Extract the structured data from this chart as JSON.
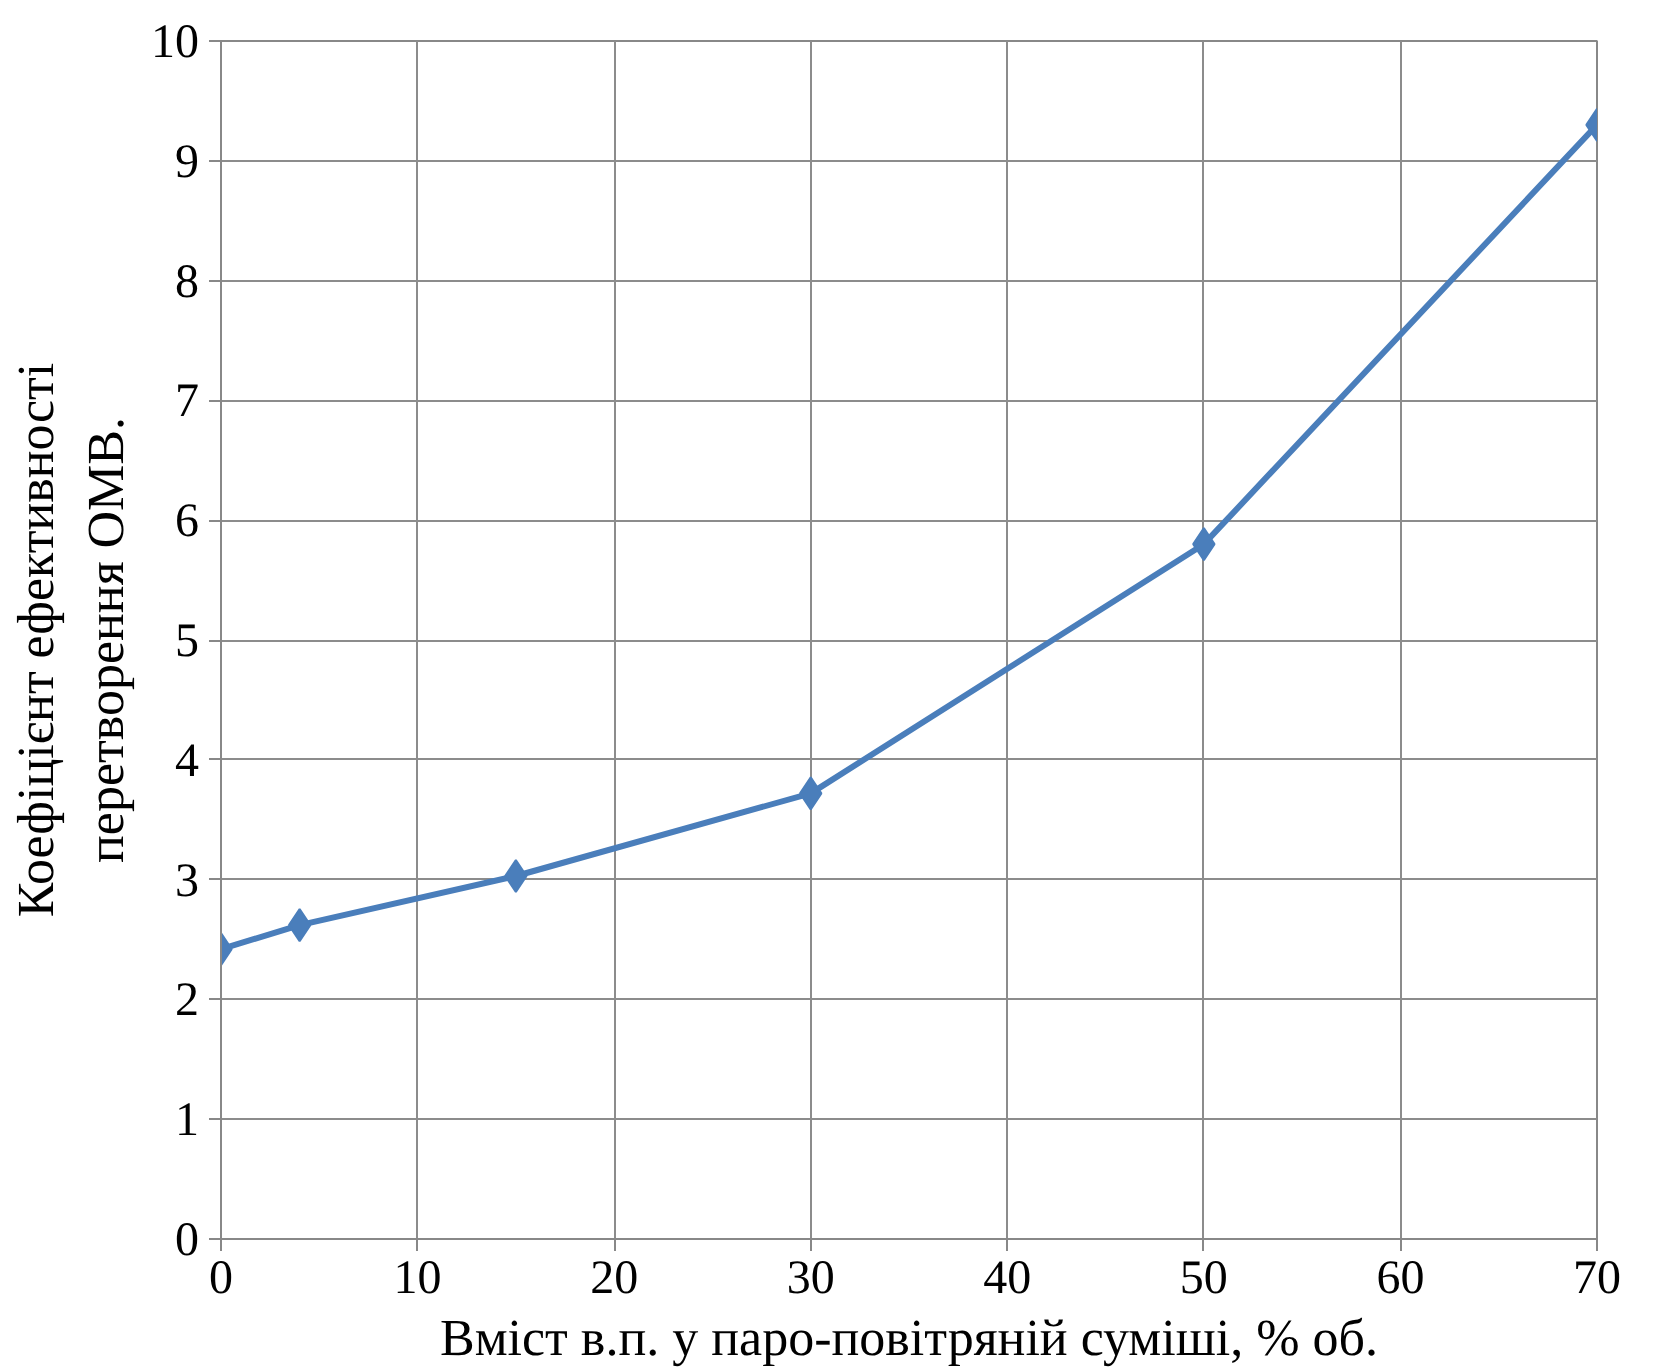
{
  "chart_data": {
    "type": "line",
    "xlabel": "Вміст в.п. у паро-повітряній суміші, % об.",
    "ylabel": "Коефіцієнт ефективності\nперетворення ОМВ.",
    "x": [
      0,
      4,
      15,
      30,
      50,
      70
    ],
    "series": [
      {
        "color": "#4a7ebb",
        "values": [
          2.42,
          2.62,
          3.03,
          3.72,
          5.8,
          9.3
        ]
      }
    ],
    "xlim": [
      0,
      70
    ],
    "xticks": [
      0,
      10,
      20,
      30,
      40,
      50,
      60,
      70
    ],
    "ylim": [
      0,
      10
    ],
    "yticks": [
      0,
      1,
      2,
      3,
      4,
      5,
      6,
      7,
      8,
      9,
      10
    ],
    "grid": true,
    "marker": "diamond",
    "line_style": "solid"
  }
}
